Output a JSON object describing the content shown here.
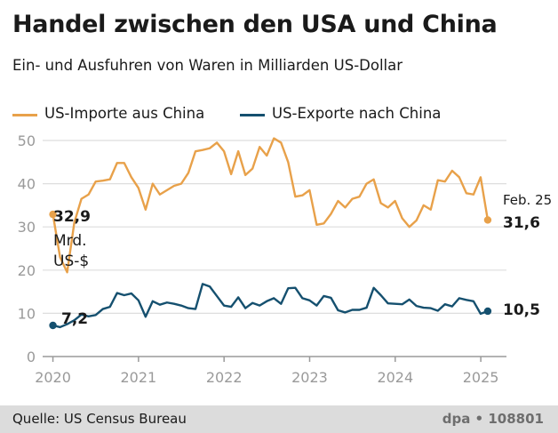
{
  "colors": {
    "imports": "#e8a14a",
    "exports": "#15506f",
    "grid": "#dedede",
    "tick": "#9a9a9a"
  },
  "footer": {
    "source": "Quelle: US Census Bureau",
    "credit": "dpa • 108801"
  },
  "chart_data": {
    "type": "line",
    "title": "Handel zwischen den USA und China",
    "subtitle": "Ein- und Ausfuhren von Waren in Milliarden US-Dollar",
    "xlabel": "",
    "ylabel": "",
    "ylim": [
      0,
      50
    ],
    "xlim": [
      2019.88,
      2025.3
    ],
    "yticks": [
      0,
      10,
      20,
      30,
      40,
      50
    ],
    "ytick_labels": [
      "0",
      "10",
      "20",
      "30",
      "40",
      "50"
    ],
    "xticks": [
      2020,
      2021,
      2022,
      2023,
      2024,
      2025
    ],
    "xtick_labels": [
      "2020",
      "2021",
      "2022",
      "2023",
      "2024",
      "2025"
    ],
    "grid": true,
    "legend_position": "top-left",
    "x_start": 2020.0,
    "x_step": 0.0833,
    "series": [
      {
        "name": "US-Importe aus China",
        "color": "#e8a14a",
        "values": [
          32.9,
          23,
          19.5,
          31,
          36.5,
          37.5,
          40.5,
          40.7,
          41,
          44.8,
          44.8,
          41.5,
          39,
          34,
          40,
          37.5,
          38.5,
          39.5,
          40,
          42.5,
          47.5,
          47.8,
          48.2,
          49.5,
          47.5,
          42.2,
          47.5,
          42,
          43.5,
          48.5,
          46.5,
          50.5,
          49.5,
          45,
          37,
          37.3,
          38.5,
          30.5,
          30.8,
          33,
          36,
          34.5,
          36.5,
          37,
          40,
          41,
          35.5,
          34.5,
          36,
          32,
          30,
          31.5,
          35,
          34,
          40.8,
          40.5,
          43,
          41.5,
          37.8,
          37.5,
          41.5,
          31.6
        ]
      },
      {
        "name": "US-Exporte nach China",
        "color": "#15506f",
        "values": [
          7.2,
          6.8,
          7.5,
          8.4,
          9.7,
          9.3,
          9.6,
          11,
          11.5,
          14.7,
          14.2,
          14.6,
          13,
          9.2,
          12.8,
          12,
          12.5,
          12.2,
          11.8,
          11.2,
          11,
          16.8,
          16.2,
          14,
          11.8,
          11.5,
          13.7,
          11.2,
          12.4,
          11.8,
          12.8,
          13.5,
          12.2,
          15.8,
          15.9,
          13.5,
          13,
          11.8,
          14,
          13.6,
          10.7,
          10.2,
          10.8,
          10.8,
          11.3,
          15.9,
          14.2,
          12.3,
          12.2,
          12.1,
          13.2,
          11.7,
          11.3,
          11.2,
          10.6,
          12.1,
          11.6,
          13.5,
          13.1,
          12.8,
          9.9,
          10.5
        ]
      }
    ],
    "annotations": {
      "import_start": "32,9",
      "unit_1": "Mrd.",
      "unit_2": "US-$",
      "import_end": "31,6",
      "end_date": "Feb. 25",
      "export_start": "7,2",
      "export_end": "10,5"
    }
  }
}
